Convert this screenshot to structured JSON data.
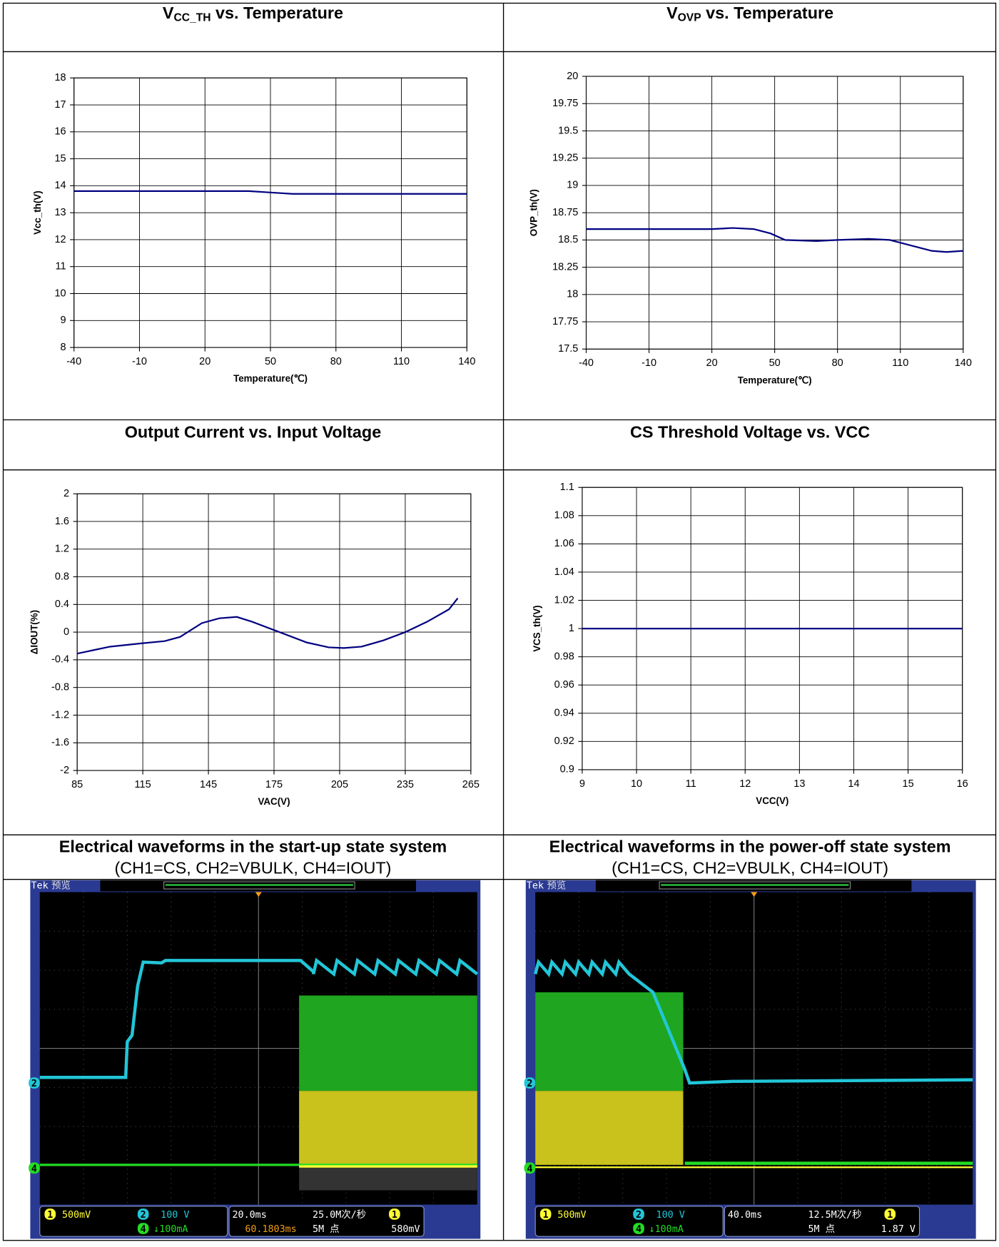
{
  "chart_data": [
    {
      "type": "line",
      "title": [
        "V",
        "CC_TH",
        " vs. Temperature"
      ],
      "xlabel": "Temperature(℃)",
      "ylabel": "Vcc_th(V)",
      "x": [
        -40,
        -10,
        20,
        40,
        50,
        60,
        80,
        110,
        140
      ],
      "values": [
        13.8,
        13.8,
        13.8,
        13.8,
        13.75,
        13.7,
        13.7,
        13.7,
        13.7
      ],
      "color": "#000080",
      "xlim": [
        -40,
        140
      ],
      "xticks": [
        -40,
        -10,
        20,
        50,
        80,
        110,
        140
      ],
      "ylim": [
        8,
        18
      ],
      "yticks": [
        8,
        9,
        10,
        11,
        12,
        13,
        14,
        15,
        16,
        17,
        18
      ],
      "grid": true
    },
    {
      "type": "line",
      "title": [
        "V",
        "OVP",
        " vs. Temperature"
      ],
      "xlabel": "Temperature(℃)",
      "ylabel": "OVP_th(V)",
      "x": [
        -40,
        -10,
        20,
        30,
        40,
        48,
        55,
        70,
        80,
        95,
        105,
        115,
        125,
        132,
        140
      ],
      "values": [
        18.6,
        18.6,
        18.6,
        18.61,
        18.6,
        18.56,
        18.5,
        18.49,
        18.5,
        18.51,
        18.5,
        18.45,
        18.4,
        18.39,
        18.4
      ],
      "color": "#000080",
      "xlim": [
        -40,
        140
      ],
      "xticks": [
        -40,
        -10,
        20,
        50,
        80,
        110,
        140
      ],
      "ylim": [
        17.5,
        20
      ],
      "yticks": [
        17.5,
        17.75,
        18,
        18.25,
        18.5,
        18.75,
        19,
        19.25,
        19.5,
        19.75,
        20
      ],
      "grid": true
    },
    {
      "type": "line",
      "title": "Output Current vs. Input Voltage",
      "xlabel": "VAC(V)",
      "ylabel": "ΔIOUT(%)",
      "x": [
        85,
        100,
        115,
        125,
        132,
        142,
        150,
        158,
        165,
        175,
        190,
        200,
        207,
        215,
        225,
        235,
        245,
        255,
        259
      ],
      "values": [
        -0.31,
        -0.21,
        -0.16,
        -0.13,
        -0.07,
        0.13,
        0.2,
        0.22,
        0.15,
        0.03,
        -0.15,
        -0.22,
        -0.23,
        -0.21,
        -0.12,
        0,
        0.15,
        0.33,
        0.49
      ],
      "color": "#000080",
      "xlim": [
        85,
        265
      ],
      "xticks": [
        85,
        115,
        145,
        175,
        205,
        235,
        265
      ],
      "ylim": [
        -2,
        2
      ],
      "yticks": [
        -2,
        -1.6,
        -1.2,
        -0.8,
        -0.4,
        0,
        0.4,
        0.8,
        1.2,
        1.6,
        2
      ],
      "grid": true
    },
    {
      "type": "line",
      "title": "CS Threshold Voltage vs. VCC",
      "xlabel": "VCC(V)",
      "ylabel": "VCS_th(V)",
      "x": [
        9,
        16
      ],
      "values": [
        1,
        1
      ],
      "color": "#000080",
      "xlim": [
        9,
        16
      ],
      "xticks": [
        9,
        10,
        11,
        12,
        13,
        14,
        15,
        16
      ],
      "ylim": [
        0.9,
        1.1
      ],
      "yticks": [
        0.9,
        0.92,
        0.94,
        0.96,
        0.98,
        1,
        1.02,
        1.04,
        1.06,
        1.08,
        1.1
      ],
      "grid": true
    }
  ],
  "scopes": [
    {
      "title": "Electrical waveforms in the start-up state system",
      "subtitle": "(CH1=CS, CH2=VBULK, CH4=IOUT)",
      "brand": "Tek",
      "mode": "预览",
      "markers": {
        "ch1": "1",
        "ch2": "2",
        "ch4": "4"
      },
      "ch1": "500mV",
      "ch2": "100 V",
      "ch4": "↓100mA",
      "timebase": "20.0ms",
      "rate": "25.0M次/秒",
      "delay": "60.1803ms",
      "points": "5M 点",
      "trigger": "580mV"
    },
    {
      "title": "Electrical waveforms in the power-off state system",
      "subtitle": "(CH1=CS, CH2=VBULK, CH4=IOUT)",
      "brand": "Tek",
      "mode": "预览",
      "markers": {
        "ch1": "1",
        "ch2": "2",
        "ch4": "4"
      },
      "ch1": "500mV",
      "ch2": "100 V",
      "ch4": "↓100mA",
      "timebase": "40.0ms",
      "rate": "12.5M次/秒",
      "points": "5M 点",
      "trigger": "1.87 V"
    }
  ]
}
